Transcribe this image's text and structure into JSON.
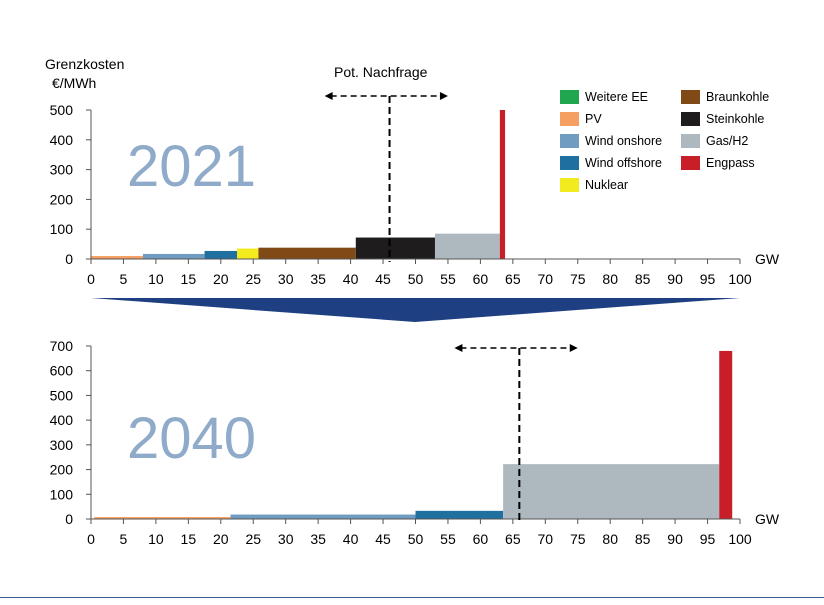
{
  "y_label_line1": "Grenzkosten",
  "y_label_line2": "€/MWh",
  "demand_label": "Pot. Nachfrage",
  "legend": [
    {
      "name": "Weitere EE",
      "color": "#1fa64f"
    },
    {
      "name": "PV",
      "color": "#f5a062"
    },
    {
      "name": "Wind onshore",
      "color": "#6f9cc0"
    },
    {
      "name": "Wind offshore",
      "color": "#1f6fa0"
    },
    {
      "name": "Nuklear",
      "color": "#f2ec1e"
    },
    {
      "name": "Braunkohle",
      "color": "#7f4a16"
    },
    {
      "name": "Steinkohle",
      "color": "#1e1c1c"
    },
    {
      "name": "Gas/H2",
      "color": "#aeb9bf"
    },
    {
      "name": "Engpass",
      "color": "#c81e28"
    }
  ],
  "chart_data": [
    {
      "type": "bar",
      "subtype": "merit-order",
      "year_label": "2021",
      "xlabel": "GW",
      "ylabel": "Grenzkosten €/MWh",
      "xlim": [
        0,
        100
      ],
      "ylim": [
        0,
        500
      ],
      "x_ticks": [
        0,
        5,
        10,
        15,
        20,
        25,
        30,
        35,
        40,
        45,
        50,
        55,
        60,
        65,
        70,
        75,
        80,
        85,
        90,
        95,
        100
      ],
      "y_ticks": [
        0,
        100,
        200,
        300,
        400,
        500
      ],
      "segments": [
        {
          "series": "PV",
          "x_start": 0,
          "x_end": 8,
          "value": 10
        },
        {
          "series": "Wind onshore",
          "x_start": 8,
          "x_end": 17.5,
          "value": 17
        },
        {
          "series": "Wind offshore",
          "x_start": 17.5,
          "x_end": 22.5,
          "value": 27
        },
        {
          "series": "Nuklear",
          "x_start": 22.5,
          "x_end": 25.8,
          "value": 35
        },
        {
          "series": "Braunkohle",
          "x_start": 25.8,
          "x_end": 40.8,
          "value": 38
        },
        {
          "series": "Steinkohle",
          "x_start": 40.8,
          "x_end": 53,
          "value": 72
        },
        {
          "series": "Gas/H2",
          "x_start": 53,
          "x_end": 63,
          "value": 85
        },
        {
          "series": "Engpass",
          "x_start": 63,
          "x_end": 63.8,
          "value": 500
        }
      ],
      "demand": {
        "x": 46,
        "range": [
          36,
          55
        ]
      }
    },
    {
      "type": "bar",
      "subtype": "merit-order",
      "year_label": "2040",
      "xlabel": "GW",
      "ylabel": "Grenzkosten €/MWh",
      "xlim": [
        0,
        100
      ],
      "ylim": [
        0,
        700
      ],
      "x_ticks": [
        0,
        5,
        10,
        15,
        20,
        25,
        30,
        35,
        40,
        45,
        50,
        55,
        60,
        65,
        70,
        75,
        80,
        85,
        90,
        95,
        100
      ],
      "y_ticks": [
        0,
        100,
        200,
        300,
        400,
        500,
        600,
        700
      ],
      "segments": [
        {
          "series": "PV",
          "x_start": 0.5,
          "x_end": 21.5,
          "value": 8
        },
        {
          "series": "Wind onshore",
          "x_start": 21.5,
          "x_end": 50,
          "value": 18
        },
        {
          "series": "Wind offshore",
          "x_start": 50,
          "x_end": 63.5,
          "value": 33
        },
        {
          "series": "Gas/H2",
          "x_start": 63.5,
          "x_end": 96.8,
          "value": 222
        },
        {
          "series": "Engpass",
          "x_start": 96.8,
          "x_end": 98.8,
          "value": 680
        }
      ],
      "demand": {
        "x": 66,
        "range": [
          56,
          75
        ]
      }
    }
  ]
}
